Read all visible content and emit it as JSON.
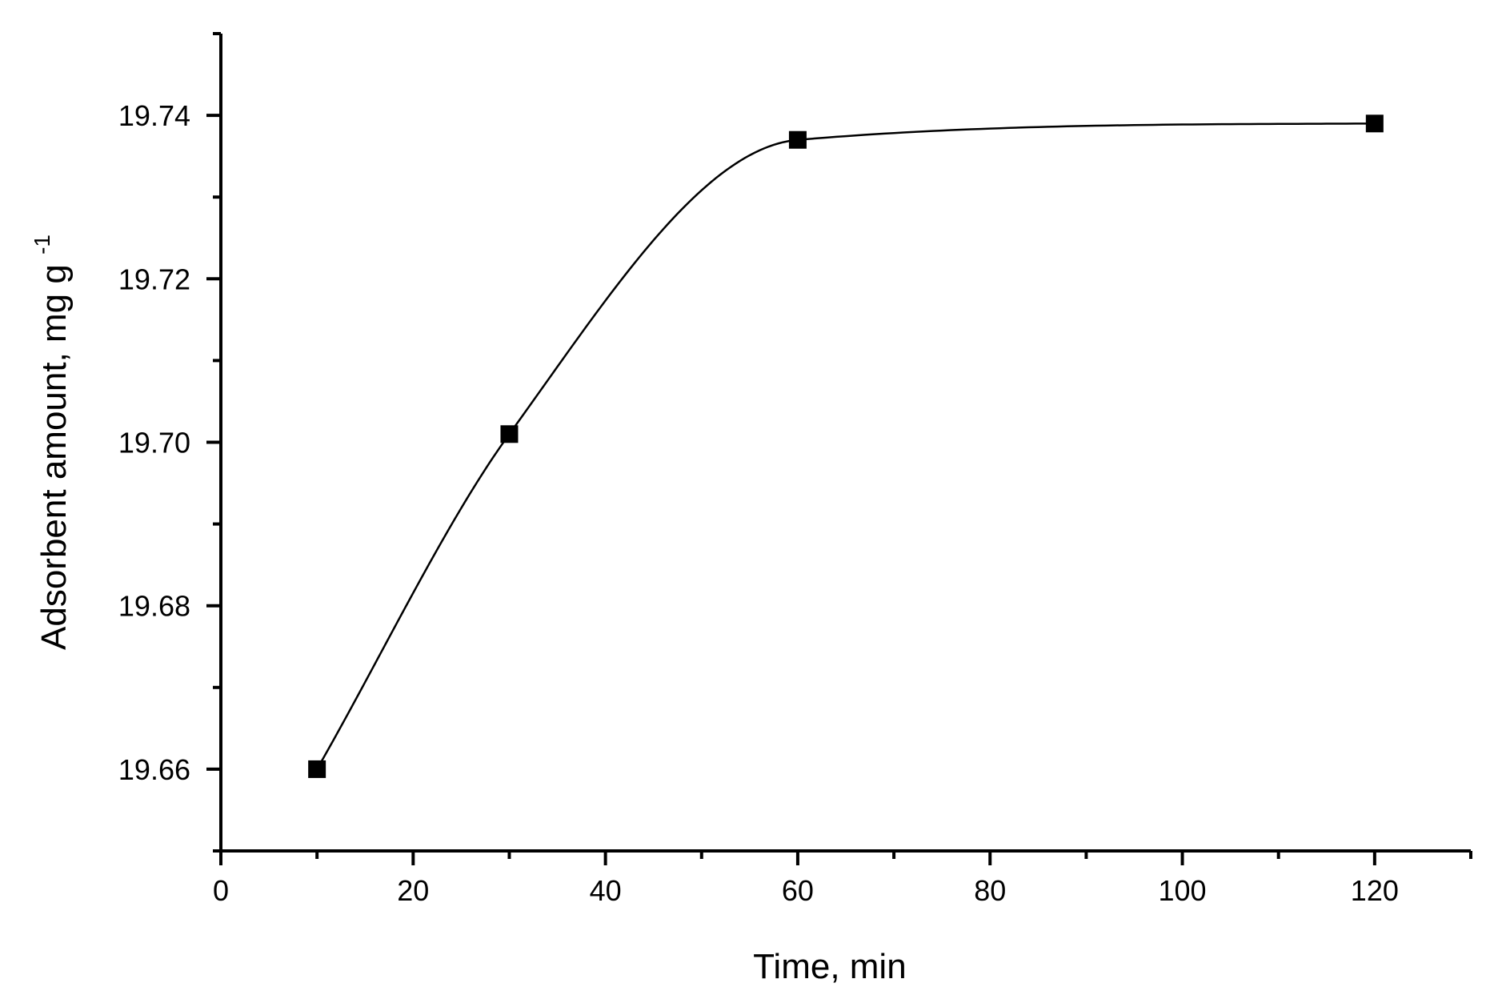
{
  "chart_data": {
    "type": "line",
    "title": "",
    "xlabel": "Time, min",
    "ylabel": {
      "text": "Adsorbent amount, mg g",
      "superscript": "-1"
    },
    "xlim": [
      0,
      130
    ],
    "ylim": [
      19.65,
      19.75
    ],
    "x_ticks": [
      0,
      20,
      40,
      60,
      80,
      100,
      120
    ],
    "x_tick_labels": [
      "0",
      "20",
      "40",
      "60",
      "80",
      "100",
      "120"
    ],
    "x_minor_ticks": [
      10,
      30,
      50,
      70,
      90,
      110,
      130
    ],
    "y_ticks": [
      19.66,
      19.68,
      19.7,
      19.72,
      19.74
    ],
    "y_tick_labels": [
      "19.66",
      "19.68",
      "19.70",
      "19.72",
      "19.74"
    ],
    "y_minor_ticks": [
      19.65,
      19.67,
      19.69,
      19.71,
      19.73,
      19.75
    ],
    "grid": false,
    "legend": "none",
    "series": [
      {
        "marker": "square",
        "color": "#000000",
        "line": "smooth",
        "x": [
          10,
          30,
          60,
          120
        ],
        "y": [
          19.66,
          19.701,
          19.737,
          19.739
        ]
      }
    ]
  }
}
